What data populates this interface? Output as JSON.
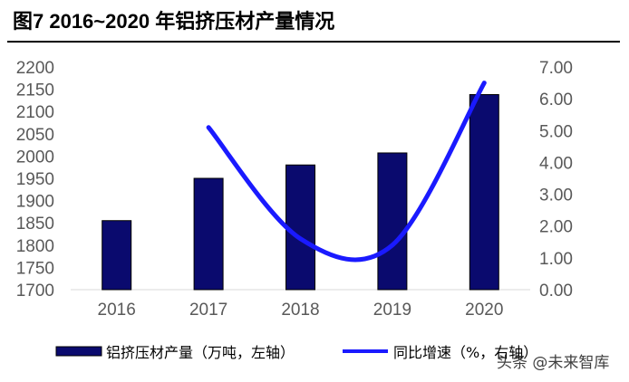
{
  "title": "图7   2016~2020 年铝挤压材产量情况",
  "watermark": "头条 @未来智库",
  "colors": {
    "bar": "#0a0a6e",
    "line": "#1a1aff"
  },
  "chart_data": {
    "type": "bar",
    "categories": [
      "2016",
      "2017",
      "2018",
      "2019",
      "2020"
    ],
    "series": [
      {
        "name": "铝挤压材产量（万吨，左轴）",
        "type": "bar",
        "axis": "left",
        "values": [
          1855,
          1950,
          1980,
          2007,
          2138
        ]
      },
      {
        "name": "同比增速（%，右轴）",
        "type": "line",
        "axis": "right",
        "values": [
          null,
          5.1,
          1.6,
          1.4,
          6.5
        ]
      }
    ],
    "ylim": [
      1700,
      2200
    ],
    "yticks": [
      "2200",
      "2150",
      "2100",
      "2050",
      "2000",
      "1950",
      "1900",
      "1850",
      "1800",
      "1750",
      "1700"
    ],
    "y2lim": [
      0,
      7
    ],
    "y2ticks": [
      "7.00",
      "6.00",
      "5.00",
      "4.00",
      "3.00",
      "2.00",
      "1.00",
      "0.00"
    ],
    "legend_position": "bottom",
    "grid": false
  }
}
